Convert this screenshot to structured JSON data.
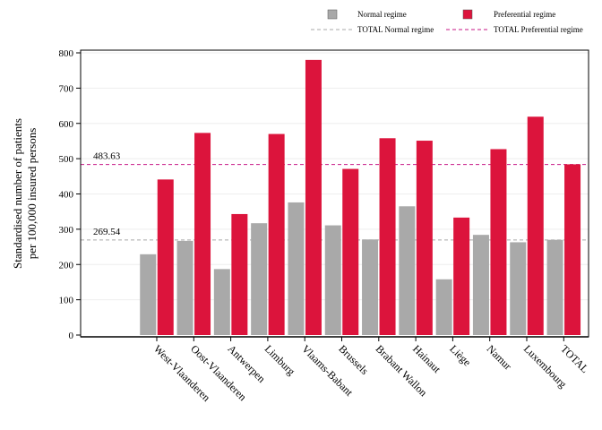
{
  "chart_data": {
    "type": "bar",
    "categories": [
      "West-Vlaanderen",
      "Oost-Vlaanderen",
      "Antwerpen",
      "Limburg",
      "Vlaams-Babant",
      "Brussels",
      "Brabant Wallon",
      "Hainaut",
      "Liège",
      "Namur",
      "Luxembourg",
      "TOTAL"
    ],
    "series": [
      {
        "name": "Normal regime",
        "color": "#a9a9a9",
        "values": [
          229,
          267,
          187,
          317,
          376,
          311,
          271,
          365,
          158,
          284,
          263,
          270
        ]
      },
      {
        "name": "Preferential regime",
        "color": "#dc143c",
        "values": [
          441,
          573,
          343,
          570,
          780,
          471,
          558,
          551,
          333,
          527,
          619,
          484
        ]
      }
    ],
    "reference_lines": [
      {
        "name": "TOTAL Normal regime",
        "value": 269.54,
        "label": "269.54",
        "color": "#a9a9a9"
      },
      {
        "name": "TOTAL Preferential regime",
        "value": 483.63,
        "label": "483.63",
        "color": "#c71585"
      }
    ],
    "ylabel_lines": [
      "Standardised number of patients",
      "per 100,000 insured persons"
    ],
    "xlabel": "",
    "ylim": [
      0,
      800
    ],
    "yticks": [
      0,
      100,
      200,
      300,
      400,
      500,
      600,
      700,
      800
    ],
    "grid": true,
    "legend_position": "top-right"
  }
}
